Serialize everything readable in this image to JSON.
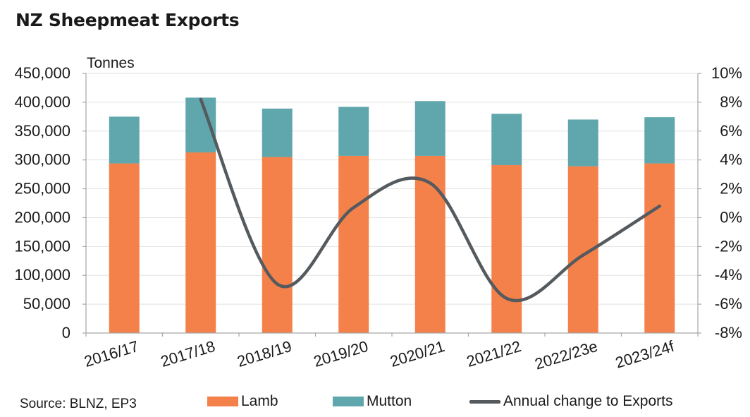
{
  "title": "NZ Sheepmeat Exports",
  "source": "Source: BLNZ, EP3",
  "colors": {
    "lamb": "#F4814A",
    "mutton": "#5FA7AD",
    "line": "#545A5E",
    "grid": "#E2E2E2",
    "axis": "#A6A6A6"
  },
  "chart_data": {
    "type": "bar",
    "stacked": true,
    "title": "NZ Sheepmeat Exports",
    "ylabel": "Tonnes",
    "categories": [
      "2016/17",
      "2017/18",
      "2018/19",
      "2019/20",
      "2020/21",
      "2021/22",
      "2022/23e",
      "2023/24f"
    ],
    "series": [
      {
        "name": "Lamb",
        "values": [
          294000,
          313000,
          305000,
          307000,
          307000,
          291000,
          289000,
          294000
        ]
      },
      {
        "name": "Mutton",
        "values": [
          81000,
          95000,
          84000,
          85000,
          95000,
          89000,
          81000,
          80000
        ]
      }
    ],
    "line_series": {
      "name": "Annual change to Exports",
      "axis": "right",
      "values": [
        null,
        8.2,
        -4.6,
        0.7,
        2.4,
        -5.6,
        -2.6,
        0.8
      ]
    },
    "ylim": [
      0,
      450000
    ],
    "y_ticks": [
      "0",
      "50,000",
      "100,000",
      "150,000",
      "200,000",
      "250,000",
      "300,000",
      "350,000",
      "400,000",
      "450,000"
    ],
    "y2lim": [
      -8,
      10
    ],
    "y2_ticks": [
      "-8%",
      "-6%",
      "-4%",
      "-2%",
      "0%",
      "2%",
      "4%",
      "6%",
      "8%",
      "10%"
    ],
    "legend": [
      "Lamb",
      "Mutton",
      "Annual change to Exports"
    ],
    "legend_position": "bottom"
  }
}
